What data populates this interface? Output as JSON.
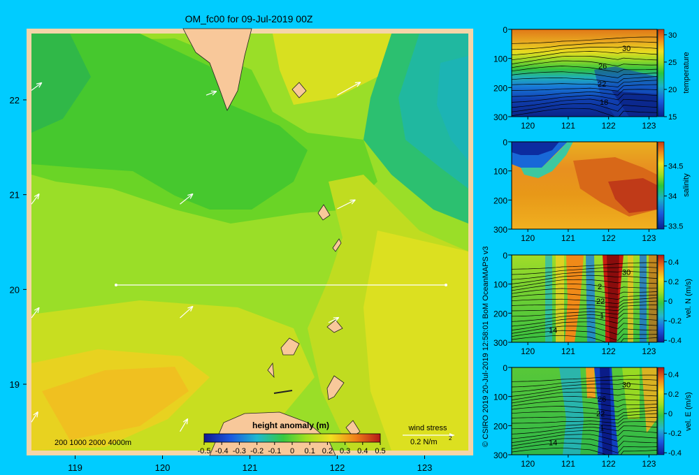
{
  "title": "OM_fc00 for 09-Jul-2019 00Z",
  "credit": "© CSIRO 2019   20-Jul-2019 12:58:01 BoM OceanMAPS v3",
  "colors": {
    "background": "#00ccff",
    "land": "#f8c89a",
    "frame": "#f5d5a8"
  },
  "map": {
    "x_ticks": [
      "119",
      "120",
      "121",
      "122",
      "123"
    ],
    "y_ticks": [
      "22",
      "21",
      "20",
      "19"
    ],
    "depth_legend": "200  1000  2000  4000m",
    "colorbar": {
      "title": "height anomaly (m)",
      "ticks": [
        "-0.5",
        "-0.4",
        "-0.3",
        "-0.2",
        "-0.1",
        "0",
        "0.1",
        "0.2",
        "0.3",
        "0.4",
        "0.5"
      ]
    },
    "wind": {
      "label": "wind stress",
      "scale": "0.2 N/m",
      "scale_sup": "2"
    }
  },
  "panels": [
    {
      "id": "temperature",
      "label": "temperature",
      "y_ticks": [
        "0",
        "100",
        "200",
        "300"
      ],
      "x_ticks": [
        "120",
        "121",
        "122",
        "123"
      ],
      "cb_ticks": [
        "30",
        "25",
        "20",
        "15"
      ],
      "contours": [
        "30",
        "26",
        "22",
        "18"
      ]
    },
    {
      "id": "salinity",
      "label": "salinity",
      "y_ticks": [
        "0",
        "100",
        "200",
        "300"
      ],
      "x_ticks": [
        "120",
        "121",
        "122",
        "123"
      ],
      "cb_ticks": [
        "34.5",
        "34",
        "33.5"
      ],
      "contours": []
    },
    {
      "id": "veln",
      "label": "vel. N (m/s)",
      "y_ticks": [
        "0",
        "100",
        "200",
        "300"
      ],
      "x_ticks": [
        "120",
        "121",
        "122",
        "123"
      ],
      "cb_ticks": [
        "0.4",
        "0.2",
        "0",
        "-0.2",
        "-0.4"
      ],
      "contours": [
        "30",
        "2",
        "22",
        "1",
        "14"
      ]
    },
    {
      "id": "vele",
      "label": "vel. E (m/s)",
      "y_ticks": [
        "0",
        "100",
        "200",
        "300"
      ],
      "x_ticks": [
        "120",
        "121",
        "122",
        "123"
      ],
      "cb_ticks": [
        "0.4",
        "0.2",
        "0",
        "-0.2",
        "-0.4"
      ],
      "contours": [
        "30",
        "26",
        "22",
        "1",
        "14"
      ]
    }
  ],
  "chart_data": [
    {
      "type": "heatmap",
      "title": "OM_fc00 for 09-Jul-2019 00Z",
      "variable": "height anomaly (m)",
      "xlim": [
        118.5,
        123.5
      ],
      "ylim": [
        18.3,
        22.7
      ],
      "colorbar_range": [
        -0.5,
        0.5
      ],
      "section_line": {
        "lat": 20.0,
        "lon": [
          119.5,
          123.05
        ]
      },
      "wind_vectors": [
        {
          "lon": 118.5,
          "lat": 22.1,
          "u": 0.04,
          "v": 0.03
        },
        {
          "lon": 120.5,
          "lat": 22.05,
          "u": 0.04,
          "v": 0.015
        },
        {
          "lon": 122.0,
          "lat": 22.05,
          "u": 0.09,
          "v": 0.05
        },
        {
          "lon": 118.5,
          "lat": 20.9,
          "u": 0.03,
          "v": 0.04
        },
        {
          "lon": 120.2,
          "lat": 20.9,
          "u": 0.05,
          "v": 0.04
        },
        {
          "lon": 122.0,
          "lat": 20.85,
          "u": 0.07,
          "v": 0.035
        },
        {
          "lon": 118.5,
          "lat": 19.7,
          "u": 0.03,
          "v": 0.04
        },
        {
          "lon": 120.2,
          "lat": 19.7,
          "u": 0.05,
          "v": 0.045
        },
        {
          "lon": 121.9,
          "lat": 19.65,
          "u": 0.04,
          "v": 0.02
        },
        {
          "lon": 118.5,
          "lat": 18.6,
          "u": 0.025,
          "v": 0.04
        },
        {
          "lon": 120.2,
          "lat": 18.5,
          "u": 0.03,
          "v": 0.05
        }
      ]
    },
    {
      "type": "heatmap",
      "variable": "temperature",
      "xlim": [
        119.6,
        123.2
      ],
      "ylim": [
        300,
        0
      ],
      "colorbar_range": [
        15,
        31
      ],
      "contour_levels": [
        30,
        26,
        22,
        18
      ]
    },
    {
      "type": "heatmap",
      "variable": "salinity",
      "xlim": [
        119.6,
        123.2
      ],
      "ylim": [
        300,
        0
      ],
      "colorbar_range": [
        33.5,
        34.9
      ]
    },
    {
      "type": "heatmap",
      "variable": "vel. N (m/s)",
      "xlim": [
        119.6,
        123.2
      ],
      "ylim": [
        300,
        0
      ],
      "colorbar_range": [
        -0.4,
        0.45
      ]
    },
    {
      "type": "heatmap",
      "variable": "vel. E (m/s)",
      "xlim": [
        119.6,
        123.2
      ],
      "ylim": [
        300,
        0
      ],
      "colorbar_range": [
        -0.4,
        0.45
      ]
    }
  ]
}
